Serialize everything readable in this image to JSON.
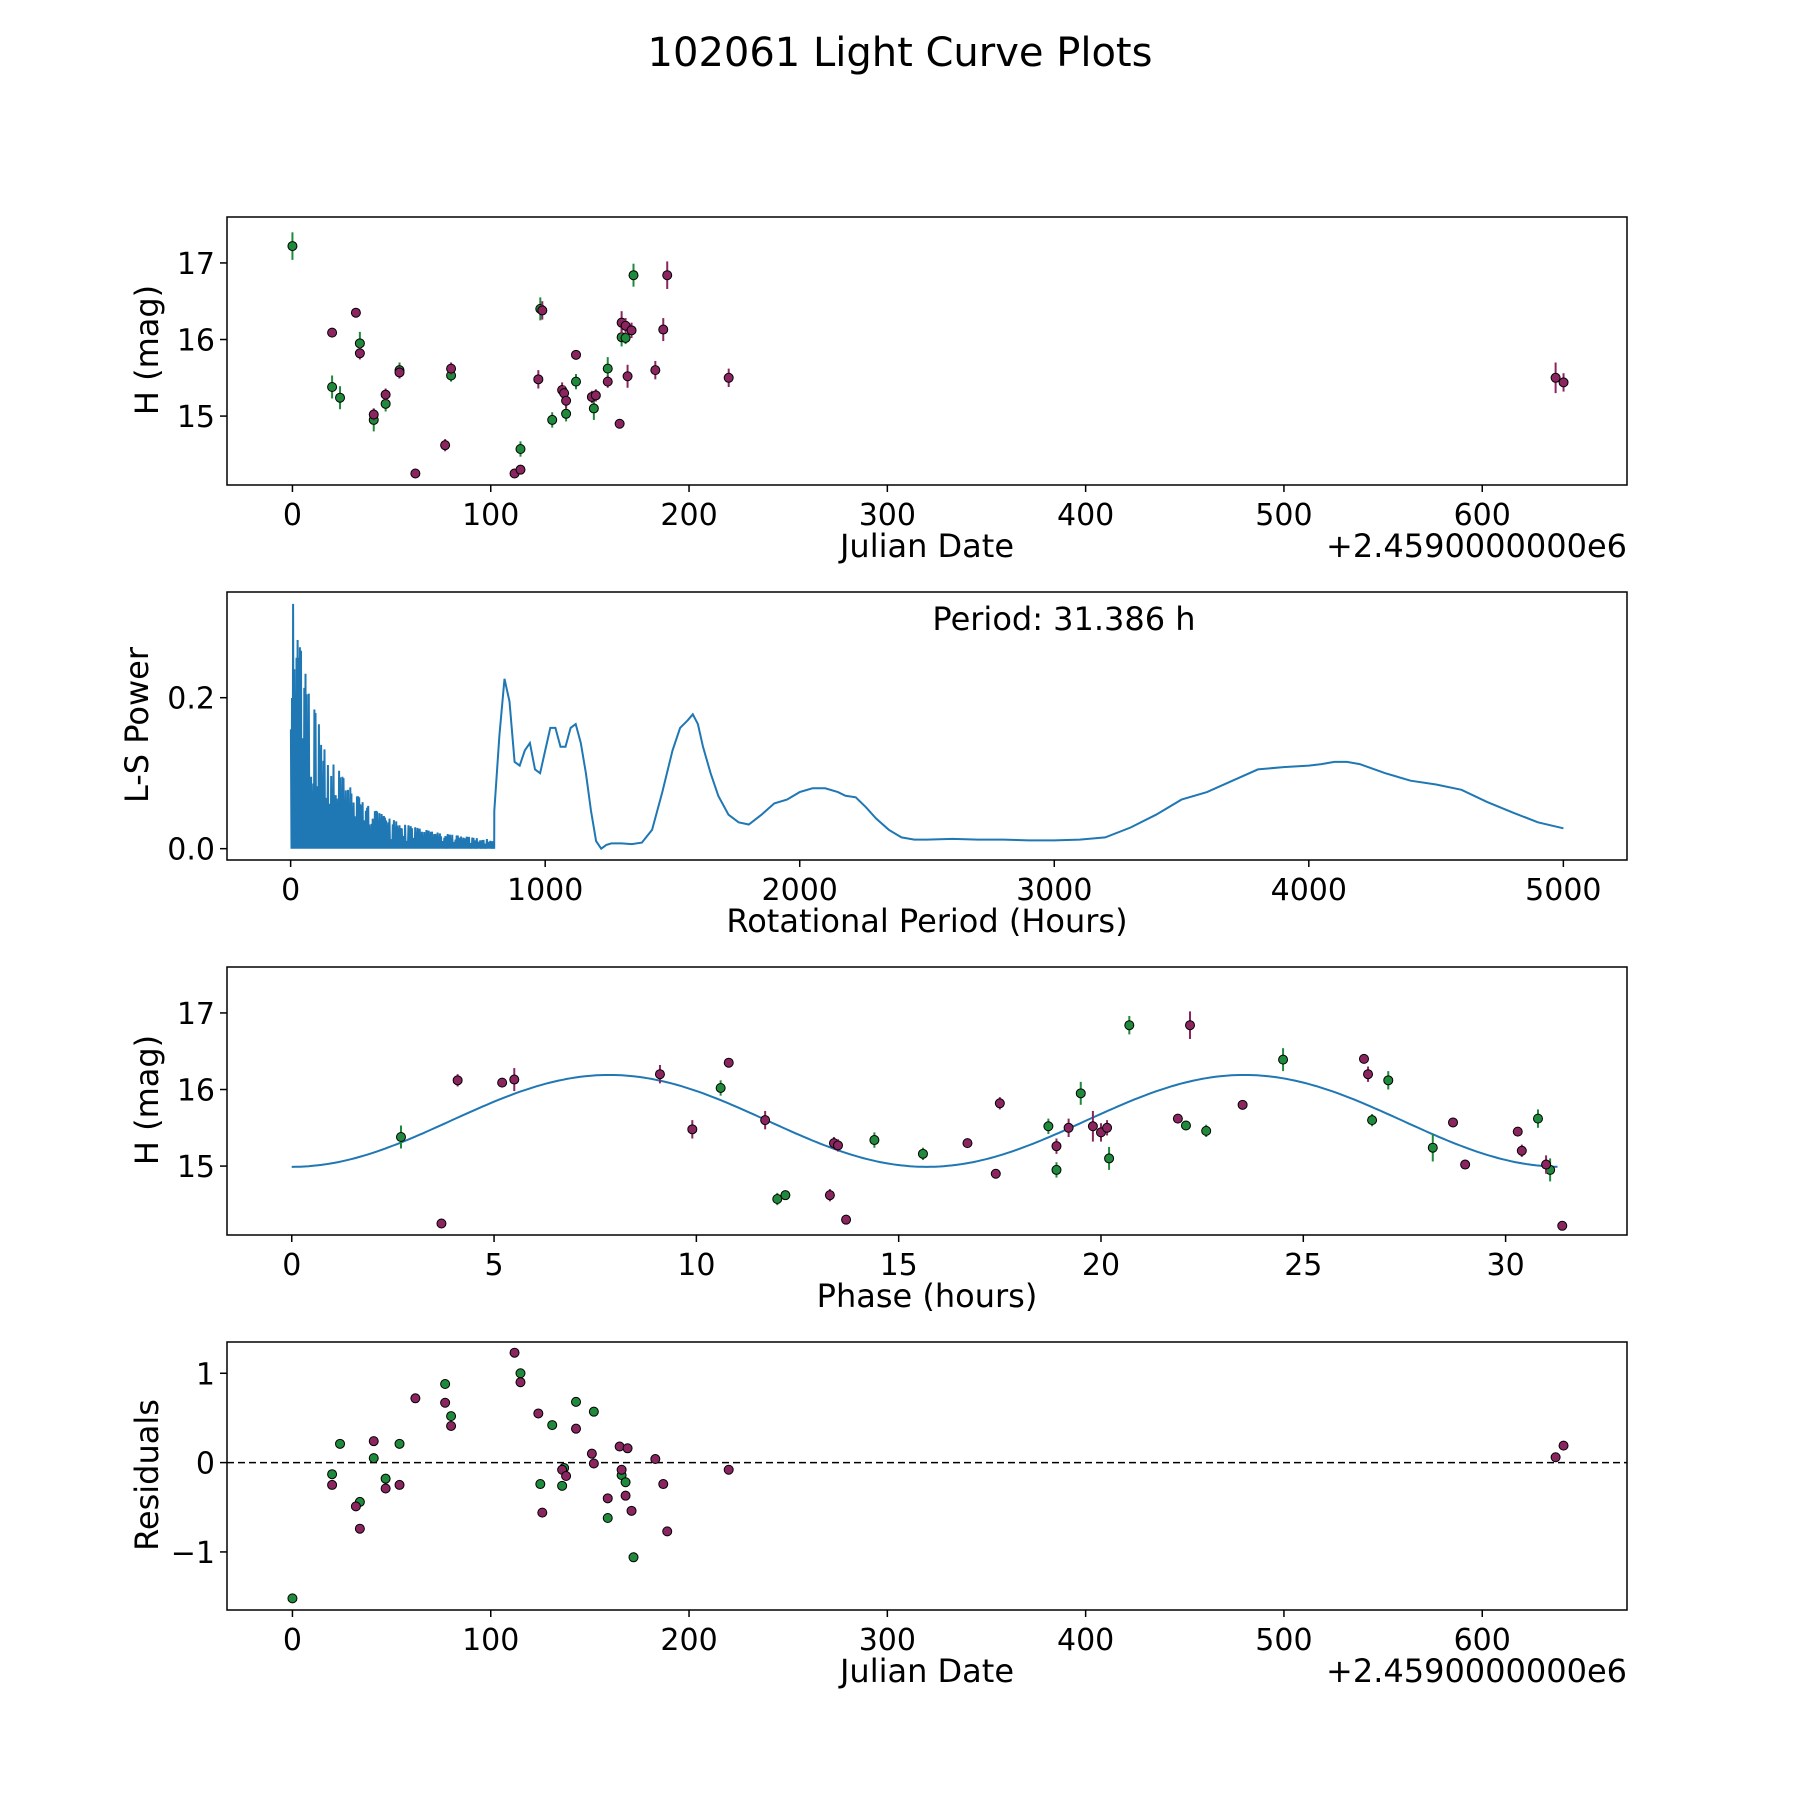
{
  "figure_title": "102061 Light Curve Plots",
  "colors": {
    "green": "#1f8a3b",
    "magenta": "#8b2560",
    "curve": "#1f77b4",
    "frame": "#000000"
  },
  "chart_data": [
    {
      "id": "lightcurve",
      "type": "scatter",
      "xlabel": "Julian Date",
      "ylabel": "H (mag)",
      "offset_text": "+2.4590000000e6",
      "xlim": [
        -33,
        673
      ],
      "ylim": [
        14.1,
        17.6
      ],
      "xticks": [
        0,
        100,
        200,
        300,
        400,
        500,
        600
      ],
      "yticks": [
        15,
        16,
        17
      ],
      "series": [
        {
          "name": "green",
          "color": "#1f8a3b",
          "points": [
            [
              0,
              17.22,
              0.18
            ],
            [
              20,
              15.38,
              0.15
            ],
            [
              24,
              15.24,
              0.15
            ],
            [
              34,
              15.95,
              0.15
            ],
            [
              41,
              14.95,
              0.15
            ],
            [
              47,
              15.16,
              0.1
            ],
            [
              54,
              15.6,
              0.1
            ],
            [
              80,
              15.53,
              0.08
            ],
            [
              115,
              14.57,
              0.1
            ],
            [
              125,
              16.4,
              0.15
            ],
            [
              131,
              14.95,
              0.1
            ],
            [
              138,
              15.03,
              0.1
            ],
            [
              143,
              15.45,
              0.1
            ],
            [
              152,
              15.1,
              0.15
            ],
            [
              159,
              15.62,
              0.15
            ],
            [
              166,
              16.03,
              0.12
            ],
            [
              168,
              16.02,
              0.08
            ],
            [
              172,
              16.84,
              0.15
            ]
          ]
        },
        {
          "name": "magenta",
          "color": "#8b2560",
          "points": [
            [
              20,
              16.09,
              0.05
            ],
            [
              32,
              16.35,
              0.05
            ],
            [
              34,
              15.82,
              0.08
            ],
            [
              41,
              15.02,
              0.08
            ],
            [
              47,
              15.28,
              0.08
            ],
            [
              54,
              15.57,
              0.08
            ],
            [
              62,
              14.25,
              0.05
            ],
            [
              77,
              14.62,
              0.08
            ],
            [
              80,
              15.62,
              0.08
            ],
            [
              112,
              14.25,
              0.05
            ],
            [
              115,
              14.3,
              0.05
            ],
            [
              124,
              15.48,
              0.12
            ],
            [
              126,
              16.38,
              0.12
            ],
            [
              136,
              15.34,
              0.1
            ],
            [
              137,
              15.3,
              0.1
            ],
            [
              138,
              15.2,
              0.1
            ],
            [
              143,
              15.8,
              0.05
            ],
            [
              151,
              15.25,
              0.08
            ],
            [
              153,
              15.27,
              0.08
            ],
            [
              159,
              15.45,
              0.08
            ],
            [
              165,
              14.9,
              0.05
            ],
            [
              166,
              16.22,
              0.15
            ],
            [
              168,
              16.18,
              0.1
            ],
            [
              171,
              16.12,
              0.1
            ],
            [
              169,
              15.52,
              0.15
            ],
            [
              183,
              15.6,
              0.12
            ],
            [
              187,
              16.13,
              0.15
            ],
            [
              189,
              16.84,
              0.18
            ],
            [
              220,
              15.5,
              0.12
            ],
            [
              637,
              15.5,
              0.2
            ],
            [
              641,
              15.44,
              0.12
            ]
          ]
        }
      ]
    },
    {
      "id": "periodogram",
      "type": "line",
      "xlabel": "Rotational Period (Hours)",
      "ylabel": "L-S Power",
      "annotation": "Period: 31.386 h",
      "xlim": [
        -250,
        5250
      ],
      "ylim": [
        -0.015,
        0.34
      ],
      "xticks": [
        0,
        1000,
        2000,
        3000,
        4000,
        5000
      ],
      "ytick_labels": [
        "0.0",
        "0.2"
      ],
      "yticks": [
        0.0,
        0.2
      ],
      "noise_region_hours": [
        0,
        800
      ],
      "series": [
        {
          "name": "L-S power",
          "x": [
            800,
            820,
            840,
            860,
            880,
            900,
            920,
            940,
            960,
            980,
            1000,
            1020,
            1040,
            1060,
            1080,
            1100,
            1120,
            1140,
            1160,
            1180,
            1200,
            1220,
            1240,
            1260,
            1280,
            1300,
            1340,
            1380,
            1420,
            1460,
            1500,
            1530,
            1560,
            1580,
            1600,
            1620,
            1650,
            1680,
            1720,
            1760,
            1800,
            1850,
            1900,
            1950,
            2000,
            2050,
            2100,
            2150,
            2180,
            2220,
            2260,
            2300,
            2350,
            2400,
            2450,
            2500,
            2600,
            2700,
            2800,
            2900,
            3000,
            3100,
            3200,
            3300,
            3400,
            3500,
            3600,
            3700,
            3800,
            3900,
            4000,
            4050,
            4100,
            4150,
            4200,
            4300,
            4400,
            4500,
            4600,
            4700,
            4800,
            4900,
            5000
          ],
          "y": [
            0.05,
            0.15,
            0.225,
            0.195,
            0.115,
            0.11,
            0.13,
            0.14,
            0.105,
            0.1,
            0.13,
            0.16,
            0.16,
            0.135,
            0.135,
            0.16,
            0.165,
            0.14,
            0.1,
            0.05,
            0.01,
            0.0,
            0.005,
            0.007,
            0.007,
            0.007,
            0.006,
            0.008,
            0.025,
            0.075,
            0.13,
            0.16,
            0.17,
            0.178,
            0.165,
            0.135,
            0.1,
            0.07,
            0.045,
            0.035,
            0.032,
            0.045,
            0.06,
            0.065,
            0.075,
            0.08,
            0.08,
            0.075,
            0.07,
            0.068,
            0.055,
            0.04,
            0.025,
            0.015,
            0.012,
            0.012,
            0.013,
            0.012,
            0.012,
            0.011,
            0.011,
            0.012,
            0.015,
            0.028,
            0.045,
            0.065,
            0.075,
            0.09,
            0.105,
            0.108,
            0.11,
            0.112,
            0.115,
            0.115,
            0.112,
            0.1,
            0.09,
            0.085,
            0.078,
            0.062,
            0.048,
            0.035,
            0.027
          ]
        }
      ]
    },
    {
      "id": "phased",
      "type": "scatter",
      "xlabel": "Phase (hours)",
      "ylabel": "H (mag)",
      "xlim": [
        -1.6,
        33.0
      ],
      "ylim": [
        14.1,
        17.6
      ],
      "xticks": [
        0,
        5,
        10,
        15,
        20,
        25,
        30
      ],
      "yticks": [
        15,
        16,
        17
      ],
      "model": {
        "period_h": 31.386,
        "mean": 15.59,
        "amplitude": 0.6,
        "phase_min_h": 0
      },
      "series": [
        {
          "name": "green",
          "color": "#1f8a3b",
          "points": [
            [
              2.7,
              15.38,
              0.15
            ],
            [
              10.6,
              16.02,
              0.1
            ],
            [
              12.0,
              14.57,
              0.08
            ],
            [
              12.2,
              14.62,
              0.05
            ],
            [
              14.4,
              15.34,
              0.1
            ],
            [
              15.6,
              15.16,
              0.08
            ],
            [
              18.7,
              15.52,
              0.1
            ],
            [
              18.9,
              14.95,
              0.1
            ],
            [
              19.5,
              15.95,
              0.15
            ],
            [
              20.2,
              15.1,
              0.15
            ],
            [
              20.7,
              16.84,
              0.12
            ],
            [
              22.1,
              15.53,
              0.05
            ],
            [
              22.6,
              15.46,
              0.08
            ],
            [
              24.5,
              16.39,
              0.15
            ],
            [
              26.7,
              15.6,
              0.08
            ],
            [
              27.1,
              16.12,
              0.12
            ],
            [
              28.2,
              15.24,
              0.18
            ],
            [
              30.8,
              15.62,
              0.12
            ],
            [
              31.1,
              14.95,
              0.15
            ]
          ]
        },
        {
          "name": "magenta",
          "color": "#8b2560",
          "points": [
            [
              3.7,
              14.25,
              0.05
            ],
            [
              4.1,
              16.12,
              0.08
            ],
            [
              5.2,
              16.09,
              0.05
            ],
            [
              5.5,
              16.13,
              0.15
            ],
            [
              9.1,
              16.2,
              0.12
            ],
            [
              9.9,
              15.48,
              0.12
            ],
            [
              10.8,
              16.35,
              0.05
            ],
            [
              11.7,
              15.6,
              0.12
            ],
            [
              13.3,
              14.62,
              0.08
            ],
            [
              13.4,
              15.3,
              0.08
            ],
            [
              13.5,
              15.27,
              0.08
            ],
            [
              13.7,
              14.3,
              0.05
            ],
            [
              16.7,
              15.3,
              0.05
            ],
            [
              17.4,
              14.9,
              0.05
            ],
            [
              17.5,
              15.82,
              0.08
            ],
            [
              18.9,
              15.26,
              0.1
            ],
            [
              19.2,
              15.5,
              0.12
            ],
            [
              19.8,
              15.52,
              0.2
            ],
            [
              20.0,
              15.44,
              0.12
            ],
            [
              20.15,
              15.5,
              0.1
            ],
            [
              21.9,
              15.62,
              0.05
            ],
            [
              22.2,
              16.84,
              0.18
            ],
            [
              23.5,
              15.8,
              0.05
            ],
            [
              26.5,
              16.4,
              0.05
            ],
            [
              26.6,
              16.2,
              0.1
            ],
            [
              28.7,
              15.57,
              0.05
            ],
            [
              29.0,
              15.02,
              0.05
            ],
            [
              30.3,
              15.45,
              0.05
            ],
            [
              30.4,
              15.2,
              0.08
            ],
            [
              31.0,
              15.02,
              0.12
            ],
            [
              31.4,
              14.22,
              0.05
            ]
          ]
        }
      ]
    },
    {
      "id": "residuals",
      "type": "scatter",
      "xlabel": "Julian Date",
      "ylabel": "Residuals",
      "offset_text": "+2.4590000000e6",
      "xlim": [
        -33,
        673
      ],
      "ylim": [
        -1.65,
        1.35
      ],
      "xticks": [
        0,
        100,
        200,
        300,
        400,
        500,
        600
      ],
      "yticks": [
        -1,
        0,
        1
      ],
      "ytick_labels": [
        "−1",
        "0",
        "1"
      ],
      "zero_line": 0,
      "series": [
        {
          "name": "green",
          "color": "#1f8a3b",
          "points": [
            [
              0,
              -1.52
            ],
            [
              20,
              -0.13
            ],
            [
              24,
              0.21
            ],
            [
              34,
              -0.44
            ],
            [
              41,
              0.05
            ],
            [
              47,
              -0.18
            ],
            [
              54,
              0.21
            ],
            [
              77,
              0.88
            ],
            [
              80,
              0.52
            ],
            [
              115,
              1.0
            ],
            [
              125,
              -0.24
            ],
            [
              131,
              0.42
            ],
            [
              137,
              -0.06
            ],
            [
              136,
              -0.26
            ],
            [
              143,
              0.68
            ],
            [
              152,
              0.57
            ],
            [
              159,
              -0.62
            ],
            [
              166,
              -0.14
            ],
            [
              168,
              -0.22
            ],
            [
              172,
              -1.06
            ]
          ]
        },
        {
          "name": "magenta",
          "color": "#8b2560",
          "points": [
            [
              20,
              -0.25
            ],
            [
              32,
              -0.49
            ],
            [
              34,
              -0.74
            ],
            [
              41,
              0.24
            ],
            [
              47,
              -0.29
            ],
            [
              54,
              -0.25
            ],
            [
              62,
              0.72
            ],
            [
              77,
              0.67
            ],
            [
              80,
              0.41
            ],
            [
              112,
              1.23
            ],
            [
              115,
              0.9
            ],
            [
              124,
              0.55
            ],
            [
              126,
              -0.56
            ],
            [
              136,
              -0.08
            ],
            [
              138,
              -0.15
            ],
            [
              143,
              0.38
            ],
            [
              151,
              0.1
            ],
            [
              152,
              -0.01
            ],
            [
              159,
              -0.4
            ],
            [
              165,
              0.18
            ],
            [
              166,
              -0.08
            ],
            [
              168,
              -0.37
            ],
            [
              169,
              0.16
            ],
            [
              171,
              -0.54
            ],
            [
              183,
              0.04
            ],
            [
              187,
              -0.24
            ],
            [
              189,
              -0.77
            ],
            [
              220,
              -0.08
            ],
            [
              637,
              0.06
            ],
            [
              641,
              0.19
            ]
          ]
        }
      ]
    }
  ]
}
